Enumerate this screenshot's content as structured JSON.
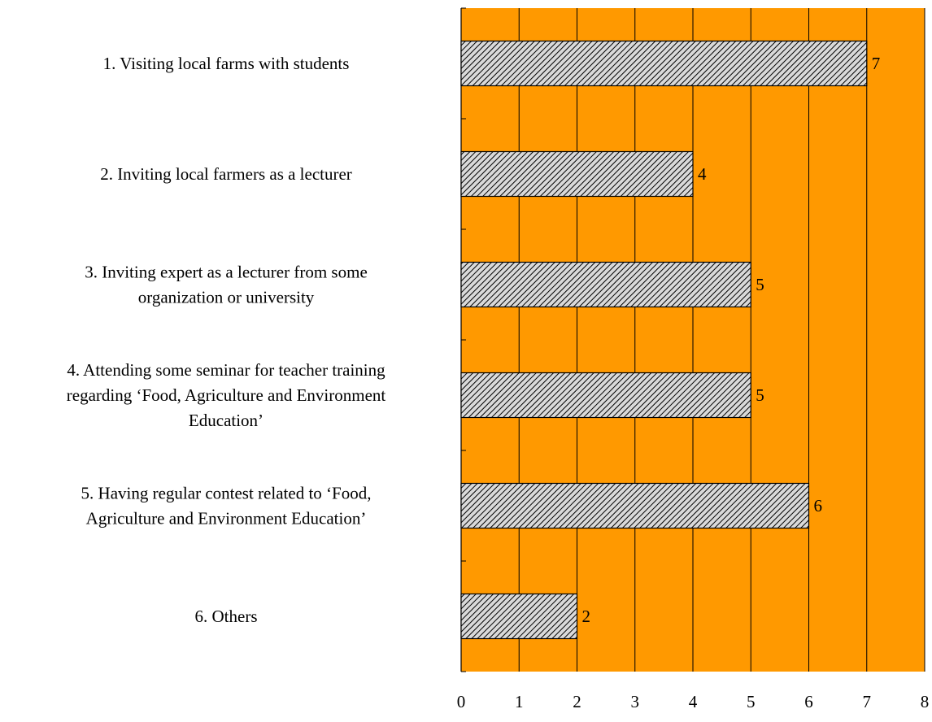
{
  "colors": {
    "plot_background": "#FF9900",
    "bar_fill": "#D9D9D9",
    "bar_hatch": "#000000",
    "axis": "#000000"
  },
  "chart_data": {
    "type": "bar",
    "orientation": "horizontal",
    "title": "",
    "xlabel": "",
    "ylabel": "",
    "xlim": [
      0,
      8
    ],
    "x_ticks": [
      0,
      1,
      2,
      3,
      4,
      5,
      6,
      7,
      8
    ],
    "grid": "vertical",
    "legend": "none",
    "categories": [
      [
        "1. Visiting local farms with students"
      ],
      [
        "2. Inviting local farmers as a lecturer"
      ],
      [
        "3. Inviting expert as a lecturer from some",
        "organization or university"
      ],
      [
        "4. Attending some seminar for teacher training",
        "regarding ‘Food, Agriculture and Environment",
        "Education’"
      ],
      [
        "5. Having regular contest related to ‘Food,",
        "Agriculture and Environment Education’"
      ],
      [
        "6. Others"
      ]
    ],
    "values": [
      7,
      4,
      5,
      5,
      6,
      2
    ],
    "data_labels": [
      "7",
      "4",
      "5",
      "5",
      "6",
      "2"
    ]
  }
}
